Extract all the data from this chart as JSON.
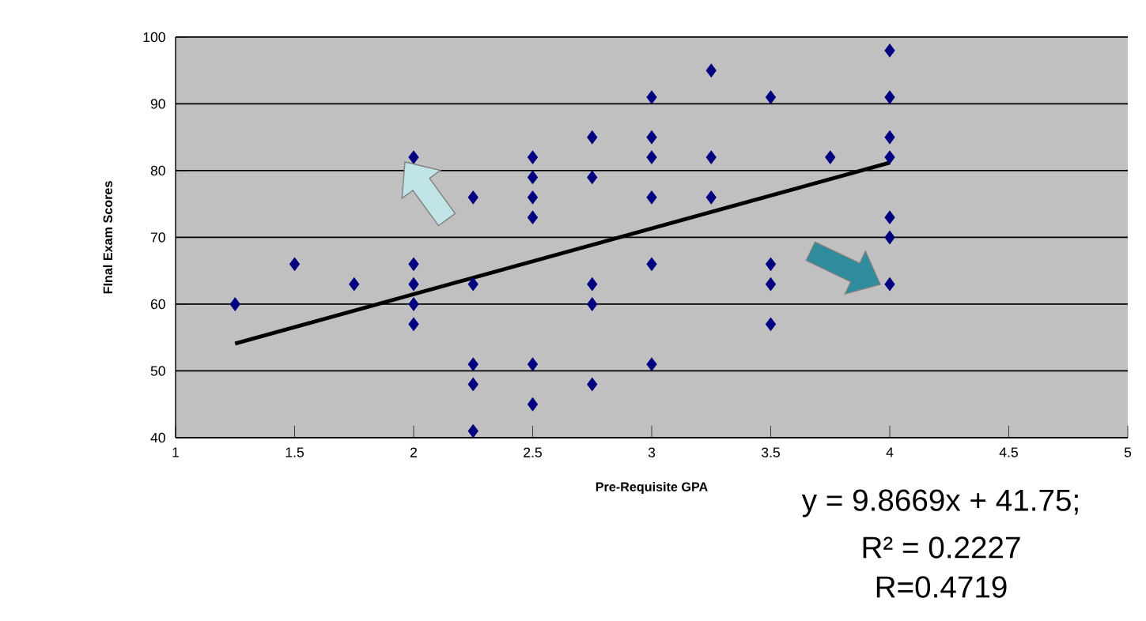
{
  "chart_data": {
    "type": "scatter",
    "xlabel": "Pre-Requisite GPA",
    "ylabel": "FInal Exam Scores",
    "xlim": [
      1,
      5
    ],
    "ylim": [
      40,
      100
    ],
    "xticks": [
      1,
      1.5,
      2,
      2.5,
      3,
      3.5,
      4,
      4.5,
      5
    ],
    "yticks": [
      40,
      50,
      60,
      70,
      80,
      90,
      100
    ],
    "grid": "y",
    "marker": "diamond",
    "series": [
      {
        "color": "#000080",
        "x": [
          1.25,
          1.5,
          1.75,
          2,
          2,
          2,
          2,
          2,
          2.25,
          2.25,
          2.25,
          2.25,
          2.25,
          2.5,
          2.5,
          2.5,
          2.5,
          2.5,
          2.5,
          2.75,
          2.75,
          2.75,
          2.75,
          2.75,
          3,
          3,
          3,
          3,
          3,
          3,
          3.25,
          3.25,
          3.25,
          3.5,
          3.5,
          3.5,
          3.5,
          3.75,
          4,
          4,
          4,
          4,
          4,
          4,
          4
        ],
        "values": [
          60,
          66,
          63,
          82,
          66,
          63,
          60,
          57,
          76,
          63,
          51,
          48,
          41,
          82,
          79,
          76,
          73,
          51,
          45,
          85,
          79,
          63,
          60,
          48,
          91,
          85,
          82,
          76,
          66,
          51,
          95,
          82,
          76,
          91,
          66,
          63,
          57,
          82,
          98,
          91,
          85,
          82,
          73,
          70,
          63
        ]
      },
      {
        "type": "line",
        "color": "#000000",
        "marker": "none",
        "line_style": "solid",
        "x": [
          1.25,
          4
        ],
        "values": [
          54.1,
          81.2
        ]
      }
    ],
    "annotations": [
      "y = 9.8669x + 41.75;",
      "R² = 0.2227",
      "R=0.4719"
    ]
  }
}
